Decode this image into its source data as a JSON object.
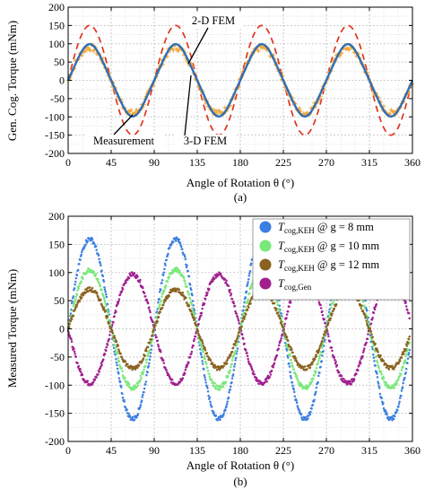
{
  "chart_data": [
    {
      "type": "line",
      "caption": "(a)",
      "xlabel": "Angle of Rotation θ (°)",
      "ylabel": "Gen. Cog. Torque (mNm)",
      "xlim": [
        0,
        360
      ],
      "ylim": [
        -200,
        200
      ],
      "xticks": [
        0,
        45,
        90,
        135,
        180,
        225,
        270,
        315,
        360
      ],
      "yticks": [
        -200,
        -150,
        -100,
        -50,
        0,
        50,
        100,
        150,
        200
      ],
      "grid": true,
      "annotations": [
        "2-D FEM",
        "Measurement",
        "3-D FEM"
      ],
      "series": [
        {
          "name": "2-D FEM",
          "style": "dashed",
          "color": "#e0341f",
          "amplitude": 150,
          "period_deg": 90,
          "peaks_at_deg": [
            22.5,
            112.5,
            202.5,
            292.5
          ]
        },
        {
          "name": "3-D FEM",
          "style": "solid",
          "color": "#2f6fb5",
          "amplitude": 95,
          "period_deg": 90,
          "peaks_at_deg": [
            22.5,
            112.5,
            202.5,
            292.5
          ]
        },
        {
          "name": "Measurement",
          "style": "markers",
          "color": "#f2a83a",
          "amplitude": 90,
          "period_deg": 90,
          "peaks_at_deg": [
            22.5,
            112.5,
            202.5,
            292.5
          ]
        }
      ]
    },
    {
      "type": "scatter",
      "caption": "(b)",
      "xlabel": "Angle of Rotation θ (°)",
      "ylabel": "Measured Torque (mNm)",
      "xlim": [
        0,
        360
      ],
      "ylim": [
        -200,
        200
      ],
      "xticks": [
        0,
        45,
        90,
        135,
        180,
        225,
        270,
        315,
        360
      ],
      "yticks": [
        -200,
        -150,
        -100,
        -50,
        0,
        50,
        100,
        150,
        200
      ],
      "grid": true,
      "legend": "top-right",
      "series": [
        {
          "name": "T cog,KEH @ g = 8 mm",
          "sym": "T",
          "sub": "cog,KEH",
          "tail": " @ g = 8 mm",
          "color": "#3b7fe0",
          "amplitude": 160,
          "period_deg": 90,
          "phase": "positive sine, peaks at ~20°"
        },
        {
          "name": "T cog,KEH @ g = 10 mm",
          "sym": "T",
          "sub": "cog,KEH",
          "tail": " @ g = 10 mm",
          "color": "#79e87a",
          "amplitude": 105,
          "period_deg": 90,
          "phase": "positive sine, peaks at ~20°"
        },
        {
          "name": "T cog,KEH @ g = 12 mm",
          "sym": "T",
          "sub": "cog,KEH",
          "tail": " @ g = 12 mm",
          "color": "#8a6220",
          "amplitude": 70,
          "period_deg": 90,
          "phase": "positive sine, peaks at ~20°"
        },
        {
          "name": "T cog,Gen",
          "sym": "T",
          "sub": "cog,Gen",
          "tail": "",
          "color": "#a0208f",
          "amplitude": 97,
          "period_deg": 90,
          "phase": "negative sine, peaks at ~67°"
        }
      ]
    }
  ]
}
